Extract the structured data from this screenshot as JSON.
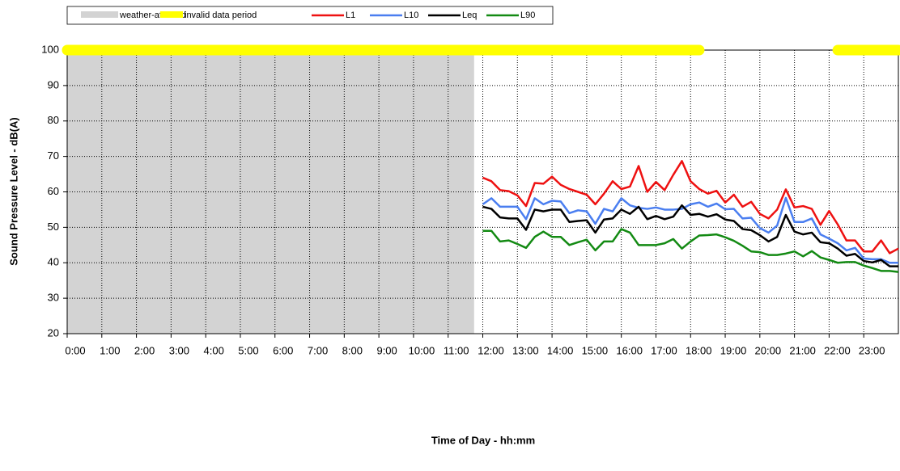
{
  "chart_data": {
    "type": "line",
    "x_label": "Time of Day - hh:mm",
    "y_label": "Sound Pressure Level - dB(A)",
    "xlim": [
      0,
      24
    ],
    "xticks": [
      {
        "value": 0,
        "label": "0:00"
      },
      {
        "value": 1,
        "label": "1:00"
      },
      {
        "value": 2,
        "label": "2:00"
      },
      {
        "value": 3,
        "label": "3:00"
      },
      {
        "value": 4,
        "label": "4:00"
      },
      {
        "value": 5,
        "label": "5:00"
      },
      {
        "value": 6,
        "label": "6:00"
      },
      {
        "value": 7,
        "label": "7:00"
      },
      {
        "value": 8,
        "label": "8:00"
      },
      {
        "value": 9,
        "label": "9:00"
      },
      {
        "value": 10,
        "label": "10:00"
      },
      {
        "value": 11,
        "label": "11:00"
      },
      {
        "value": 12,
        "label": "12:00"
      },
      {
        "value": 13,
        "label": "13:00"
      },
      {
        "value": 14,
        "label": "14:00"
      },
      {
        "value": 15,
        "label": "15:00"
      },
      {
        "value": 16,
        "label": "16:00"
      },
      {
        "value": 17,
        "label": "17:00"
      },
      {
        "value": 18,
        "label": "18:00"
      },
      {
        "value": 19,
        "label": "19:00"
      },
      {
        "value": 20,
        "label": "20:00"
      },
      {
        "value": 21,
        "label": "21:00"
      },
      {
        "value": 22,
        "label": "22:00"
      },
      {
        "value": 23,
        "label": "23:00"
      }
    ],
    "ylim": [
      20,
      100
    ],
    "yticks": [
      20,
      30,
      40,
      50,
      60,
      70,
      80,
      90,
      100
    ],
    "grid": true,
    "weather_affected": {
      "name": "weather-affected",
      "color": "#d3d3d3",
      "ranges": [
        [
          0,
          11.75
        ]
      ]
    },
    "invalid_periods": {
      "name": "invalid data period",
      "color": "#ffff00",
      "level": 100,
      "ranges": [
        [
          0,
          18.25
        ],
        [
          22.25,
          24
        ]
      ]
    },
    "x": [
      12,
      12.25,
      12.5,
      12.75,
      13,
      13.25,
      13.5,
      13.75,
      14,
      14.25,
      14.5,
      14.75,
      15,
      15.25,
      15.5,
      15.75,
      16,
      16.25,
      16.5,
      16.75,
      17,
      17.25,
      17.5,
      17.75,
      18,
      18.25,
      18.5,
      18.75,
      19,
      19.25,
      19.5,
      19.75,
      20,
      20.25,
      20.5,
      20.75,
      21,
      21.25,
      21.5,
      21.75,
      22,
      22.25,
      22.5,
      22.75,
      23,
      23.25,
      23.5,
      23.75,
      24
    ],
    "series": [
      {
        "name": "L1",
        "color": "#ee1111",
        "values": [
          64,
          63,
          60.5,
          60.2,
          59,
          56,
          62.5,
          62.3,
          64.3,
          62,
          60.8,
          60,
          59.2,
          56.5,
          59.5,
          63,
          60.8,
          61.5,
          67.3,
          60,
          62.8,
          60.5,
          64.8,
          68.7,
          63,
          60.8,
          59.5,
          60.3,
          57,
          59.2,
          55.8,
          57.2,
          53.8,
          52.5,
          55,
          60.7,
          55.6,
          56,
          55.2,
          50.7,
          54.6,
          50.8,
          46.3,
          46.3,
          43.2,
          43.2,
          46.3,
          42.7,
          44
        ]
      },
      {
        "name": "L10",
        "color": "#4a7ef0",
        "values": [
          56.5,
          58.2,
          55.8,
          55.8,
          55.8,
          52.3,
          58.2,
          56.5,
          57.5,
          57.3,
          54,
          54.8,
          54.5,
          51,
          55.2,
          54.5,
          58.2,
          56.2,
          55.5,
          55.2,
          55.6,
          55,
          55,
          55.2,
          56.5,
          57,
          55.8,
          56.7,
          55.1,
          55.2,
          52.5,
          52.7,
          49.8,
          48.5,
          50.5,
          58.3,
          51.5,
          51.5,
          52.5,
          48,
          46.8,
          45.5,
          43.5,
          44.2,
          41.2,
          41,
          41,
          40,
          40
        ]
      },
      {
        "name": "Leq",
        "color": "#000000",
        "values": [
          55.8,
          55.2,
          52.8,
          52.5,
          52.5,
          49.3,
          55,
          54.5,
          55,
          55,
          51.5,
          51.8,
          52,
          48.5,
          52.2,
          52.5,
          55,
          53.8,
          55.8,
          52.3,
          53.2,
          52.3,
          53,
          56.2,
          53.5,
          53.8,
          53,
          53.7,
          52.2,
          51.8,
          49.5,
          49.2,
          47.8,
          46,
          47.3,
          53.5,
          48.8,
          48,
          48.5,
          45.8,
          45.5,
          44,
          42,
          42.5,
          40.5,
          40.1,
          40.8,
          39,
          39
        ]
      },
      {
        "name": "L90",
        "color": "#138a13",
        "values": [
          49,
          49,
          46,
          46.3,
          45.3,
          44.2,
          47.3,
          48.8,
          47.3,
          47.3,
          45,
          45.8,
          46.5,
          43.5,
          46,
          46,
          49.5,
          48.5,
          45,
          45,
          45,
          45.5,
          46.7,
          44,
          46,
          47.7,
          47.8,
          48,
          47.2,
          46.2,
          44.8,
          43.2,
          43,
          42.2,
          42.2,
          42.6,
          43.2,
          41.8,
          43.3,
          41.5,
          40.8,
          40,
          40.2,
          40.2,
          39.2,
          38.5,
          37.7,
          37.7,
          37.4
        ]
      }
    ]
  }
}
